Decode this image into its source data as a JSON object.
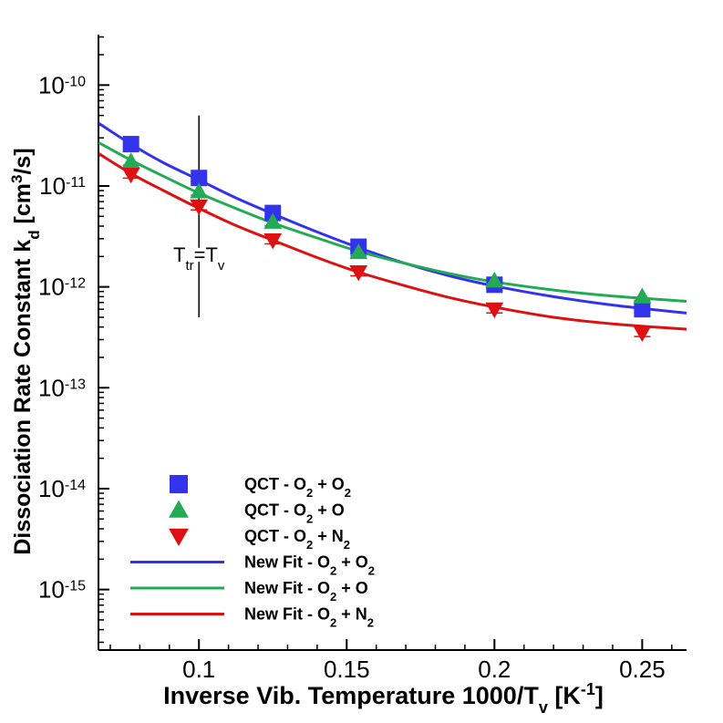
{
  "chart_data": {
    "type": "scatter",
    "xlabel": {
      "main": "Inverse Vib. Temperature 1000/T",
      "sub": "v",
      "tail": " [K",
      "sup": "-1",
      "end": "]"
    },
    "ylabel": {
      "main": "Dissociation Rate Constant k",
      "sub": "d",
      "tail": " [cm",
      "sup": "3",
      "end": "/s]"
    },
    "xlim": [
      0.066,
      0.265
    ],
    "ylim_exp": [
      -15.6,
      -9.5
    ],
    "y_scale": "log",
    "x_ticks": [
      {
        "value": 0.1,
        "label": "0.1"
      },
      {
        "value": 0.15,
        "label": "0.15"
      },
      {
        "value": 0.2,
        "label": "0.2"
      },
      {
        "value": 0.25,
        "label": "0.25"
      }
    ],
    "y_ticks": [
      {
        "exp": -10,
        "base": "10",
        "sup": "-10"
      },
      {
        "exp": -11,
        "base": "10",
        "sup": "-11"
      },
      {
        "exp": -12,
        "base": "10",
        "sup": "-12"
      },
      {
        "exp": -13,
        "base": "10",
        "sup": "-13"
      },
      {
        "exp": -14,
        "base": "10",
        "sup": "-14"
      },
      {
        "exp": -15,
        "base": "10",
        "sup": "-15"
      }
    ],
    "annotation": {
      "x": 0.1,
      "y_range": [
        5e-13,
        5e-11
      ],
      "label_main": "T",
      "label_sub": "tr",
      "label_eq": "=T",
      "label_sub2": "v"
    },
    "colors": {
      "o2o2": "#3333ee",
      "o2o": "#22aa55",
      "o2n2": "#dd1111"
    },
    "series": [
      {
        "key": "qct_o2o2",
        "kind": "points",
        "marker": "square",
        "color": "#3333ee",
        "x": [
          0.077,
          0.1,
          0.125,
          0.154,
          0.2,
          0.25
        ],
        "y": [
          2.6e-11,
          1.2e-11,
          5.4e-12,
          2.5e-12,
          1.05e-12,
          6e-13
        ]
      },
      {
        "key": "qct_o2o",
        "kind": "points",
        "marker": "triangle-up",
        "color": "#22aa55",
        "x": [
          0.077,
          0.1,
          0.125,
          0.154,
          0.2,
          0.25
        ],
        "y": [
          1.75e-11,
          8.8e-12,
          4.4e-12,
          2.2e-12,
          1.15e-12,
          8e-13
        ]
      },
      {
        "key": "qct_o2n2",
        "kind": "points",
        "marker": "triangle-down",
        "color": "#dd1111",
        "x": [
          0.077,
          0.1,
          0.125,
          0.154,
          0.2,
          0.25
        ],
        "y": [
          1.3e-11,
          6.3e-12,
          2.9e-12,
          1.4e-12,
          6e-13,
          3.5e-13
        ]
      },
      {
        "key": "fit_o2o2",
        "kind": "line",
        "color": "#3333ee",
        "x": [
          0.066,
          0.077,
          0.088,
          0.1,
          0.113,
          0.125,
          0.14,
          0.154,
          0.17,
          0.185,
          0.2,
          0.22,
          0.24,
          0.265
        ],
        "y": [
          4.2e-11,
          2.6e-11,
          1.7e-11,
          1.15e-11,
          7.5e-12,
          5.3e-12,
          3.5e-12,
          2.45e-12,
          1.7e-12,
          1.28e-12,
          1.02e-12,
          8e-13,
          6.6e-13,
          5.5e-13
        ]
      },
      {
        "key": "fit_o2o",
        "kind": "line",
        "color": "#22aa55",
        "x": [
          0.066,
          0.077,
          0.088,
          0.1,
          0.113,
          0.125,
          0.14,
          0.154,
          0.17,
          0.185,
          0.2,
          0.22,
          0.24,
          0.265
        ],
        "y": [
          2.7e-11,
          1.8e-11,
          1.25e-11,
          8.5e-12,
          5.9e-12,
          4.3e-12,
          3.05e-12,
          2.25e-12,
          1.7e-12,
          1.35e-12,
          1.12e-12,
          9.3e-13,
          8.1e-13,
          7.2e-13
        ]
      },
      {
        "key": "fit_o2n2",
        "kind": "line",
        "color": "#dd1111",
        "x": [
          0.066,
          0.077,
          0.088,
          0.1,
          0.113,
          0.125,
          0.14,
          0.154,
          0.17,
          0.185,
          0.2,
          0.22,
          0.24,
          0.265
        ],
        "y": [
          2.1e-11,
          1.33e-11,
          9e-12,
          6e-12,
          4e-12,
          2.9e-12,
          1.95e-12,
          1.4e-12,
          1.02e-12,
          7.8e-13,
          6.3e-13,
          5e-13,
          4.3e-13,
          3.8e-13
        ]
      }
    ],
    "legend": {
      "placement": "bottom-left",
      "entries": [
        {
          "series": "qct_o2o2",
          "kind": "square",
          "color": "#3333ee",
          "text": [
            [
              "QCT - O",
              false
            ],
            [
              "2",
              true
            ],
            [
              " + O",
              false
            ],
            [
              "2",
              true
            ]
          ]
        },
        {
          "series": "qct_o2o",
          "kind": "triangle-up",
          "color": "#22aa55",
          "text": [
            [
              "QCT - O",
              false
            ],
            [
              "2",
              true
            ],
            [
              " + O",
              false
            ]
          ]
        },
        {
          "series": "qct_o2n2",
          "kind": "triangle-down",
          "color": "#dd1111",
          "text": [
            [
              "QCT - O",
              false
            ],
            [
              "2",
              true
            ],
            [
              " + N",
              false
            ],
            [
              "2",
              true
            ]
          ]
        },
        {
          "series": "fit_o2o2",
          "kind": "line",
          "color": "#3333ee",
          "text": [
            [
              "New Fit - O",
              false
            ],
            [
              "2",
              true
            ],
            [
              " + O",
              false
            ],
            [
              "2",
              true
            ]
          ]
        },
        {
          "series": "fit_o2o",
          "kind": "line",
          "color": "#22aa55",
          "text": [
            [
              "New Fit - O",
              false
            ],
            [
              "2",
              true
            ],
            [
              " + O",
              false
            ]
          ]
        },
        {
          "series": "fit_o2n2",
          "kind": "line",
          "color": "#dd1111",
          "text": [
            [
              "New Fit - O",
              false
            ],
            [
              "2",
              true
            ],
            [
              " + N",
              false
            ],
            [
              "2",
              true
            ]
          ]
        }
      ]
    }
  }
}
